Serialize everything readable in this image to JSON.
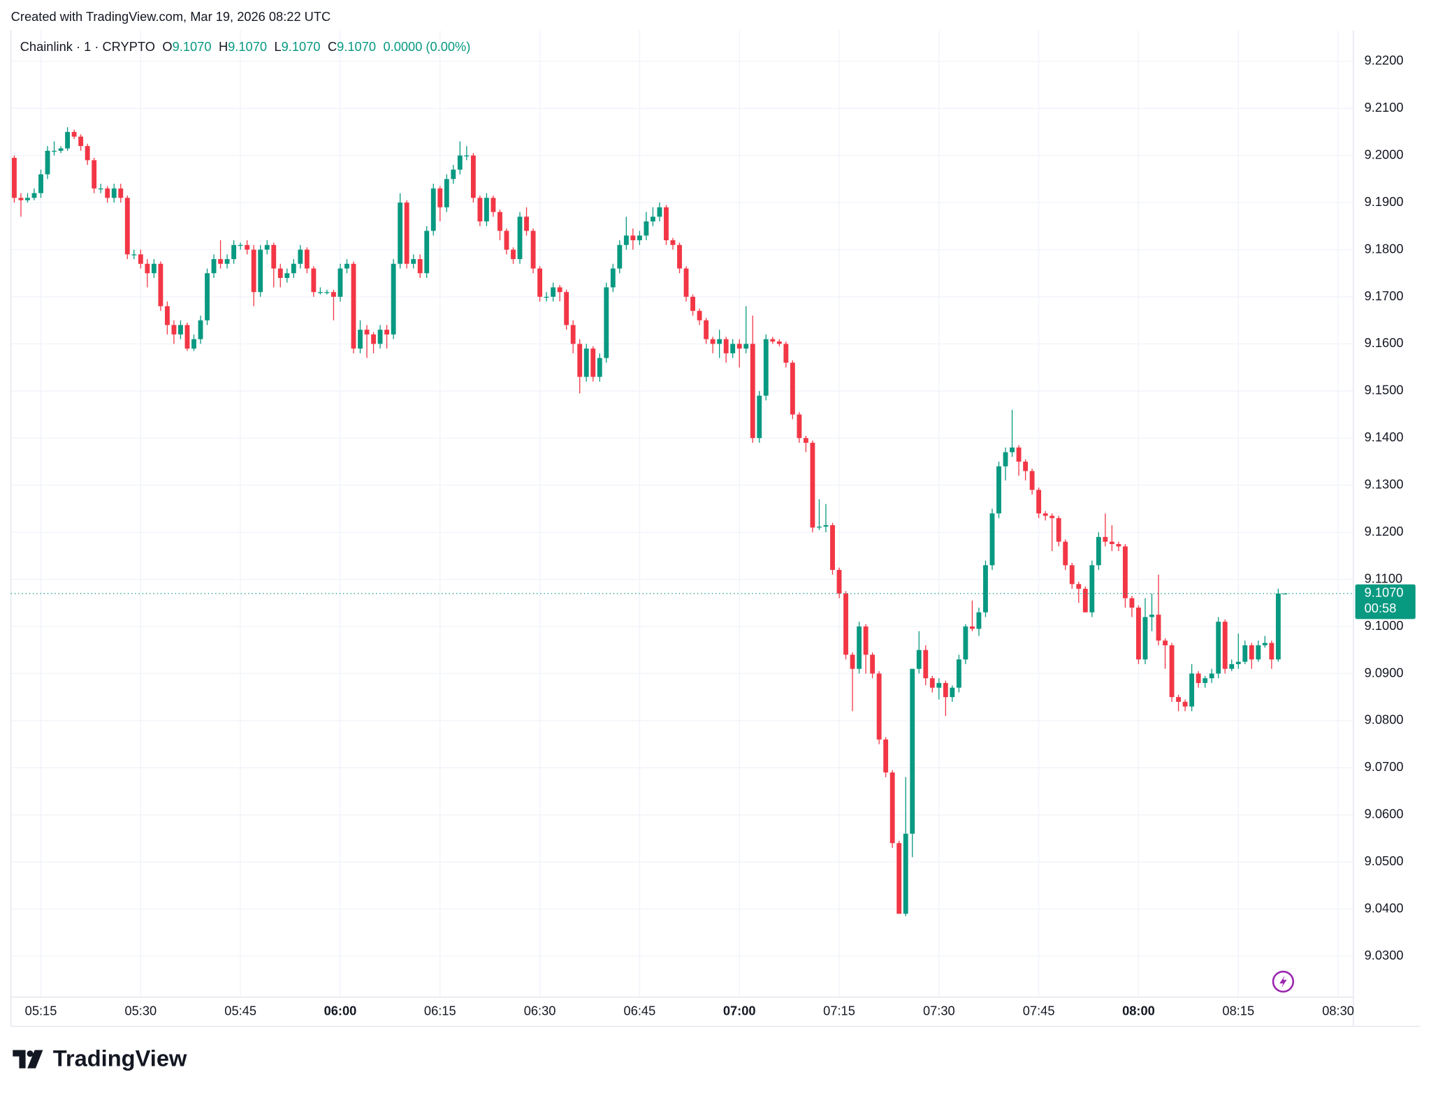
{
  "header": "Created with TradingView.com, Mar 19, 2026 08:22 UTC",
  "brand": "TradingView",
  "chart_data": {
    "type": "candlestick",
    "legend": {
      "symbol": "Chainlink · 1 · CRYPTO",
      "fields": [
        {
          "key": "O",
          "value": "9.1070"
        },
        {
          "key": "H",
          "value": "9.1070"
        },
        {
          "key": "L",
          "value": "9.1070"
        },
        {
          "key": "C",
          "value": "9.1070"
        }
      ],
      "change": "0.0000 (0.00%)"
    },
    "up_color": "#089981",
    "down_color": "#f23645",
    "grid": true,
    "last_price": {
      "value": 9.107,
      "label": "9.1070"
    },
    "countdown": "00:58",
    "xlim": [
      310.5,
      512.3
    ],
    "xticks": [
      {
        "value": 315,
        "label": "05:15"
      },
      {
        "value": 330,
        "label": "05:30"
      },
      {
        "value": 345,
        "label": "05:45"
      },
      {
        "value": 360,
        "label": "06:00"
      },
      {
        "value": 375,
        "label": "06:15"
      },
      {
        "value": 390,
        "label": "06:30"
      },
      {
        "value": 405,
        "label": "06:45"
      },
      {
        "value": 420,
        "label": "07:00"
      },
      {
        "value": 435,
        "label": "07:15"
      },
      {
        "value": 450,
        "label": "07:30"
      },
      {
        "value": 465,
        "label": "07:45"
      },
      {
        "value": 480,
        "label": "08:00"
      },
      {
        "value": 495,
        "label": "08:15"
      },
      {
        "value": 510,
        "label": "08:30"
      }
    ],
    "ylim": [
      9.0213,
      9.2266
    ],
    "yticks": [
      {
        "value": 9.03,
        "label": "9.0300"
      },
      {
        "value": 9.04,
        "label": "9.0400"
      },
      {
        "value": 9.05,
        "label": "9.0500"
      },
      {
        "value": 9.06,
        "label": "9.0600"
      },
      {
        "value": 9.07,
        "label": "9.0700"
      },
      {
        "value": 9.08,
        "label": "9.0800"
      },
      {
        "value": 9.09,
        "label": "9.0900"
      },
      {
        "value": 9.1,
        "label": "9.1000"
      },
      {
        "value": 9.11,
        "label": "9.1100"
      },
      {
        "value": 9.12,
        "label": "9.1200"
      },
      {
        "value": 9.13,
        "label": "9.1300"
      },
      {
        "value": 9.14,
        "label": "9.1400"
      },
      {
        "value": 9.15,
        "label": "9.1500"
      },
      {
        "value": 9.16,
        "label": "9.1600"
      },
      {
        "value": 9.17,
        "label": "9.1700"
      },
      {
        "value": 9.18,
        "label": "9.1800"
      },
      {
        "value": 9.19,
        "label": "9.1900"
      },
      {
        "value": 9.2,
        "label": "9.2000"
      },
      {
        "value": 9.21,
        "label": "9.2100"
      },
      {
        "value": 9.22,
        "label": "9.2200"
      }
    ],
    "x": [
      311,
      312,
      313,
      314,
      315,
      316,
      317,
      318,
      319,
      320,
      321,
      322,
      323,
      324,
      325,
      326,
      327,
      328,
      329,
      330,
      331,
      332,
      333,
      334,
      335,
      336,
      337,
      338,
      339,
      340,
      341,
      342,
      343,
      344,
      345,
      346,
      347,
      348,
      349,
      350,
      351,
      352,
      353,
      354,
      355,
      356,
      357,
      358,
      359,
      360,
      361,
      362,
      363,
      364,
      365,
      366,
      367,
      368,
      369,
      370,
      371,
      372,
      373,
      374,
      375,
      376,
      377,
      378,
      379,
      380,
      381,
      382,
      383,
      384,
      385,
      386,
      387,
      388,
      389,
      390,
      391,
      392,
      393,
      394,
      395,
      396,
      397,
      398,
      399,
      400,
      401,
      402,
      403,
      404,
      405,
      406,
      407,
      408,
      409,
      410,
      411,
      412,
      413,
      414,
      415,
      416,
      417,
      418,
      419,
      420,
      421,
      422,
      423,
      424,
      425,
      426,
      427,
      428,
      429,
      430,
      431,
      432,
      433,
      434,
      435,
      436,
      437,
      438,
      439,
      440,
      441,
      442,
      443,
      444,
      445,
      446,
      447,
      448,
      449,
      450,
      451,
      452,
      453,
      454,
      455,
      456,
      457,
      458,
      459,
      460,
      461,
      462,
      463,
      464,
      465,
      466,
      467,
      468,
      469,
      470,
      471,
      472,
      473,
      474,
      475,
      476,
      477,
      478,
      479,
      480,
      481,
      482,
      483,
      484,
      485,
      486,
      487,
      488,
      489,
      490,
      491,
      492,
      493,
      494,
      495,
      496,
      497,
      498,
      499,
      500,
      501,
      502
    ],
    "ohlc": [
      [
        9.1995,
        9.2,
        9.19,
        9.191
      ],
      [
        9.191,
        9.192,
        9.187,
        9.1905
      ],
      [
        9.1905,
        9.192,
        9.19,
        9.191
      ],
      [
        9.191,
        9.193,
        9.1905,
        9.192
      ],
      [
        9.192,
        9.197,
        9.191,
        9.196
      ],
      [
        9.196,
        9.202,
        9.195,
        9.201
      ],
      [
        9.201,
        9.203,
        9.2,
        9.201
      ],
      [
        9.201,
        9.202,
        9.2005,
        9.2015
      ],
      [
        9.2015,
        9.206,
        9.201,
        9.205
      ],
      [
        9.205,
        9.2055,
        9.2035,
        9.204
      ],
      [
        9.204,
        9.2045,
        9.201,
        9.202
      ],
      [
        9.202,
        9.2025,
        9.198,
        9.199
      ],
      [
        9.199,
        9.1995,
        9.192,
        9.193
      ],
      [
        9.193,
        9.194,
        9.192,
        9.193
      ],
      [
        9.193,
        9.1935,
        9.19,
        9.191
      ],
      [
        9.191,
        9.194,
        9.19,
        9.193
      ],
      [
        9.193,
        9.194,
        9.19,
        9.191
      ],
      [
        9.191,
        9.1915,
        9.178,
        9.179
      ],
      [
        9.179,
        9.18,
        9.178,
        9.179
      ],
      [
        9.179,
        9.18,
        9.176,
        9.177
      ],
      [
        9.177,
        9.178,
        9.172,
        9.175
      ],
      [
        9.175,
        9.178,
        9.174,
        9.177
      ],
      [
        9.177,
        9.1775,
        9.167,
        9.168
      ],
      [
        9.168,
        9.169,
        9.162,
        9.164
      ],
      [
        9.164,
        9.165,
        9.16,
        9.162
      ],
      [
        9.162,
        9.165,
        9.161,
        9.164
      ],
      [
        9.164,
        9.1645,
        9.1585,
        9.159
      ],
      [
        9.159,
        9.162,
        9.1585,
        9.161
      ],
      [
        9.161,
        9.166,
        9.16,
        9.165
      ],
      [
        9.165,
        9.176,
        9.164,
        9.175
      ],
      [
        9.175,
        9.179,
        9.174,
        9.178
      ],
      [
        9.178,
        9.182,
        9.176,
        9.177
      ],
      [
        9.177,
        9.179,
        9.176,
        9.178
      ],
      [
        9.178,
        9.182,
        9.177,
        9.181
      ],
      [
        9.181,
        9.1815,
        9.18,
        9.181
      ],
      [
        9.181,
        9.182,
        9.179,
        9.18
      ],
      [
        9.18,
        9.181,
        9.168,
        9.171
      ],
      [
        9.171,
        9.181,
        9.17,
        9.18
      ],
      [
        9.18,
        9.182,
        9.179,
        9.181
      ],
      [
        9.181,
        9.1815,
        9.172,
        9.176
      ],
      [
        9.176,
        9.177,
        9.172,
        9.174
      ],
      [
        9.174,
        9.176,
        9.173,
        9.175
      ],
      [
        9.175,
        9.178,
        9.174,
        9.177
      ],
      [
        9.177,
        9.181,
        9.176,
        9.18
      ],
      [
        9.18,
        9.1805,
        9.175,
        9.176
      ],
      [
        9.176,
        9.1765,
        9.17,
        9.171
      ],
      [
        9.171,
        9.172,
        9.1705,
        9.171
      ],
      [
        9.171,
        9.1715,
        9.1705,
        9.171
      ],
      [
        9.171,
        9.1715,
        9.165,
        9.17
      ],
      [
        9.17,
        9.177,
        9.169,
        9.176
      ],
      [
        9.176,
        9.178,
        9.175,
        9.177
      ],
      [
        9.177,
        9.1775,
        9.158,
        9.159
      ],
      [
        9.159,
        9.165,
        9.158,
        9.163
      ],
      [
        9.163,
        9.164,
        9.157,
        9.162
      ],
      [
        9.162,
        9.1625,
        9.158,
        9.16
      ],
      [
        9.16,
        9.164,
        9.159,
        9.163
      ],
      [
        9.163,
        9.164,
        9.159,
        9.162
      ],
      [
        9.162,
        9.178,
        9.161,
        9.177
      ],
      [
        9.177,
        9.192,
        9.176,
        9.19
      ],
      [
        9.19,
        9.1905,
        9.176,
        9.177
      ],
      [
        9.177,
        9.179,
        9.176,
        9.178
      ],
      [
        9.178,
        9.179,
        9.174,
        9.175
      ],
      [
        9.175,
        9.185,
        9.174,
        9.184
      ],
      [
        9.184,
        9.194,
        9.183,
        9.193
      ],
      [
        9.193,
        9.1935,
        9.186,
        9.189
      ],
      [
        9.189,
        9.196,
        9.188,
        9.195
      ],
      [
        9.195,
        9.198,
        9.194,
        9.197
      ],
      [
        9.197,
        9.203,
        9.196,
        9.2
      ],
      [
        9.2,
        9.202,
        9.199,
        9.2
      ],
      [
        9.2,
        9.2005,
        9.19,
        9.191
      ],
      [
        9.191,
        9.1915,
        9.185,
        9.186
      ],
      [
        9.186,
        9.192,
        9.185,
        9.191
      ],
      [
        9.191,
        9.1915,
        9.187,
        9.188
      ],
      [
        9.188,
        9.1885,
        9.182,
        9.184
      ],
      [
        9.184,
        9.1845,
        9.179,
        9.18
      ],
      [
        9.18,
        9.1805,
        9.177,
        9.178
      ],
      [
        9.178,
        9.188,
        9.177,
        9.187
      ],
      [
        9.187,
        9.189,
        9.183,
        9.184
      ],
      [
        9.184,
        9.1845,
        9.175,
        9.176
      ],
      [
        9.176,
        9.1765,
        9.169,
        9.17
      ],
      [
        9.17,
        9.171,
        9.169,
        9.17
      ],
      [
        9.17,
        9.173,
        9.169,
        9.172
      ],
      [
        9.172,
        9.1725,
        9.169,
        9.171
      ],
      [
        9.171,
        9.1715,
        9.163,
        9.164
      ],
      [
        9.164,
        9.165,
        9.158,
        9.16
      ],
      [
        9.16,
        9.161,
        9.1495,
        9.153
      ],
      [
        9.153,
        9.16,
        9.152,
        9.159
      ],
      [
        9.159,
        9.1595,
        9.152,
        9.153
      ],
      [
        9.153,
        9.158,
        9.152,
        9.157
      ],
      [
        9.157,
        9.173,
        9.156,
        9.172
      ],
      [
        9.172,
        9.177,
        9.171,
        9.176
      ],
      [
        9.176,
        9.182,
        9.175,
        9.181
      ],
      [
        9.181,
        9.187,
        9.18,
        9.183
      ],
      [
        9.183,
        9.1845,
        9.18,
        9.182
      ],
      [
        9.182,
        9.184,
        9.181,
        9.183
      ],
      [
        9.183,
        9.188,
        9.182,
        9.186
      ],
      [
        9.186,
        9.189,
        9.185,
        9.187
      ],
      [
        9.187,
        9.19,
        9.186,
        9.189
      ],
      [
        9.189,
        9.1895,
        9.181,
        9.182
      ],
      [
        9.182,
        9.1825,
        9.18,
        9.181
      ],
      [
        9.181,
        9.1815,
        9.175,
        9.176
      ],
      [
        9.176,
        9.1765,
        9.169,
        9.17
      ],
      [
        9.17,
        9.1705,
        9.166,
        9.167
      ],
      [
        9.167,
        9.1675,
        9.164,
        9.165
      ],
      [
        9.165,
        9.1655,
        9.16,
        9.161
      ],
      [
        9.161,
        9.1615,
        9.158,
        9.16
      ],
      [
        9.16,
        9.163,
        9.157,
        9.161
      ],
      [
        9.161,
        9.1615,
        9.156,
        9.158
      ],
      [
        9.158,
        9.161,
        9.157,
        9.16
      ],
      [
        9.16,
        9.161,
        9.155,
        9.159
      ],
      [
        9.159,
        9.168,
        9.158,
        9.16
      ],
      [
        9.16,
        9.166,
        9.139,
        9.14
      ],
      [
        9.14,
        9.15,
        9.139,
        9.149
      ],
      [
        9.149,
        9.162,
        9.148,
        9.161
      ],
      [
        9.161,
        9.1615,
        9.16,
        9.1605
      ],
      [
        9.1605,
        9.161,
        9.1595,
        9.16
      ],
      [
        9.16,
        9.1605,
        9.155,
        9.156
      ],
      [
        9.156,
        9.1565,
        9.144,
        9.145
      ],
      [
        9.145,
        9.1455,
        9.139,
        9.14
      ],
      [
        9.14,
        9.1405,
        9.137,
        9.139
      ],
      [
        9.139,
        9.1395,
        9.12,
        9.121
      ],
      [
        9.121,
        9.127,
        9.1205,
        9.1212
      ],
      [
        9.1212,
        9.126,
        9.12,
        9.1215
      ],
      [
        9.1215,
        9.122,
        9.111,
        9.112
      ],
      [
        9.112,
        9.1125,
        9.106,
        9.107
      ],
      [
        9.107,
        9.1075,
        9.093,
        9.094
      ],
      [
        9.094,
        9.0945,
        9.082,
        9.091
      ],
      [
        9.091,
        9.101,
        9.09,
        9.1
      ],
      [
        9.1,
        9.1005,
        9.09,
        9.094
      ],
      [
        9.094,
        9.0945,
        9.089,
        9.09
      ],
      [
        9.09,
        9.0905,
        9.075,
        9.076
      ],
      [
        9.076,
        9.0765,
        9.068,
        9.069
      ],
      [
        9.069,
        9.0695,
        9.053,
        9.054
      ],
      [
        9.054,
        9.0545,
        9.039,
        9.039
      ],
      [
        9.039,
        9.068,
        9.0385,
        9.056
      ],
      [
        9.056,
        9.091,
        9.051,
        9.091
      ],
      [
        9.091,
        9.099,
        9.09,
        9.095
      ],
      [
        9.095,
        9.096,
        9.0875,
        9.089
      ],
      [
        9.089,
        9.0895,
        9.086,
        9.087
      ],
      [
        9.087,
        9.089,
        9.0845,
        9.088
      ],
      [
        9.088,
        9.0885,
        9.081,
        9.085
      ],
      [
        9.085,
        9.0875,
        9.084,
        9.087
      ],
      [
        9.087,
        9.094,
        9.086,
        9.093
      ],
      [
        9.093,
        9.1005,
        9.092,
        9.1
      ],
      [
        9.1,
        9.1055,
        9.099,
        9.0995
      ],
      [
        9.0995,
        9.104,
        9.098,
        9.103
      ],
      [
        9.103,
        9.114,
        9.102,
        9.113
      ],
      [
        9.113,
        9.125,
        9.112,
        9.124
      ],
      [
        9.124,
        9.135,
        9.123,
        9.134
      ],
      [
        9.134,
        9.138,
        9.131,
        9.137
      ],
      [
        9.137,
        9.146,
        9.136,
        9.138
      ],
      [
        9.138,
        9.1385,
        9.132,
        9.135
      ],
      [
        9.135,
        9.1355,
        9.131,
        9.133
      ],
      [
        9.133,
        9.1335,
        9.128,
        9.129
      ],
      [
        9.129,
        9.1295,
        9.123,
        9.124
      ],
      [
        9.124,
        9.1245,
        9.1225,
        9.1235
      ],
      [
        9.1235,
        9.124,
        9.116,
        9.123
      ],
      [
        9.123,
        9.1235,
        9.117,
        9.118
      ],
      [
        9.118,
        9.1185,
        9.112,
        9.113
      ],
      [
        9.113,
        9.1135,
        9.108,
        9.109
      ],
      [
        9.109,
        9.1095,
        9.105,
        9.108
      ],
      [
        9.108,
        9.1085,
        9.103,
        9.103
      ],
      [
        9.103,
        9.114,
        9.102,
        9.113
      ],
      [
        9.113,
        9.12,
        9.112,
        9.119
      ],
      [
        9.119,
        9.124,
        9.117,
        9.118
      ],
      [
        9.118,
        9.1215,
        9.116,
        9.1175
      ],
      [
        9.1175,
        9.118,
        9.116,
        9.117
      ],
      [
        9.117,
        9.1175,
        9.104,
        9.106
      ],
      [
        9.106,
        9.1065,
        9.102,
        9.104
      ],
      [
        9.104,
        9.1045,
        9.092,
        9.093
      ],
      [
        9.093,
        9.106,
        9.092,
        9.102
      ],
      [
        9.102,
        9.107,
        9.099,
        9.1025
      ],
      [
        9.1025,
        9.111,
        9.096,
        9.097
      ],
      [
        9.097,
        9.0975,
        9.091,
        9.096
      ],
      [
        9.096,
        9.0965,
        9.084,
        9.085
      ],
      [
        9.085,
        9.0855,
        9.082,
        9.084
      ],
      [
        9.084,
        9.0845,
        9.082,
        9.083
      ],
      [
        9.083,
        9.092,
        9.082,
        9.09
      ],
      [
        9.09,
        9.0905,
        9.087,
        9.088
      ],
      [
        9.088,
        9.0895,
        9.087,
        9.089
      ],
      [
        9.089,
        9.091,
        9.088,
        9.09
      ],
      [
        9.09,
        9.102,
        9.089,
        9.101
      ],
      [
        9.101,
        9.1015,
        9.09,
        9.091
      ],
      [
        9.091,
        9.093,
        9.0905,
        9.092
      ],
      [
        9.092,
        9.0985,
        9.091,
        9.0925
      ],
      [
        9.0925,
        9.097,
        9.092,
        9.096
      ],
      [
        9.096,
        9.0965,
        9.091,
        9.093
      ],
      [
        9.093,
        9.097,
        9.0925,
        9.096
      ],
      [
        9.096,
        9.098,
        9.0955,
        9.0965
      ],
      [
        9.0965,
        9.097,
        9.091,
        9.093
      ],
      [
        9.093,
        9.108,
        9.0925,
        9.107
      ],
      [
        9.107,
        9.107,
        9.107,
        9.107
      ]
    ]
  }
}
